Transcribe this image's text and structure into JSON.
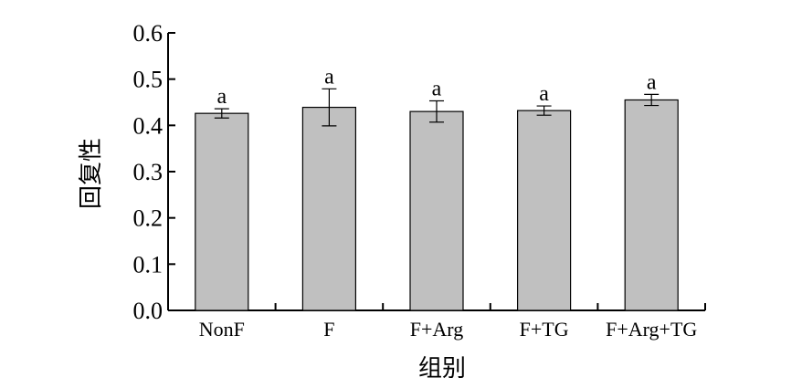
{
  "chart_data": {
    "type": "bar",
    "title": "",
    "xlabel": "组别",
    "ylabel": "回复性",
    "categories": [
      "NonF",
      "F",
      "F+Arg",
      "F+TG",
      "F+Arg+TG"
    ],
    "values": [
      0.426,
      0.439,
      0.43,
      0.432,
      0.455
    ],
    "error": [
      0.01,
      0.04,
      0.023,
      0.01,
      0.012
    ],
    "significance": [
      "a",
      "a",
      "a",
      "a",
      "a"
    ],
    "ylim": [
      0.0,
      0.6
    ],
    "yticks": [
      "0.0",
      "0.1",
      "0.2",
      "0.3",
      "0.4",
      "0.5",
      "0.6"
    ],
    "grid": false,
    "legend": "none",
    "bar_color": "#c0c0c0",
    "edge_color": "#000000"
  }
}
